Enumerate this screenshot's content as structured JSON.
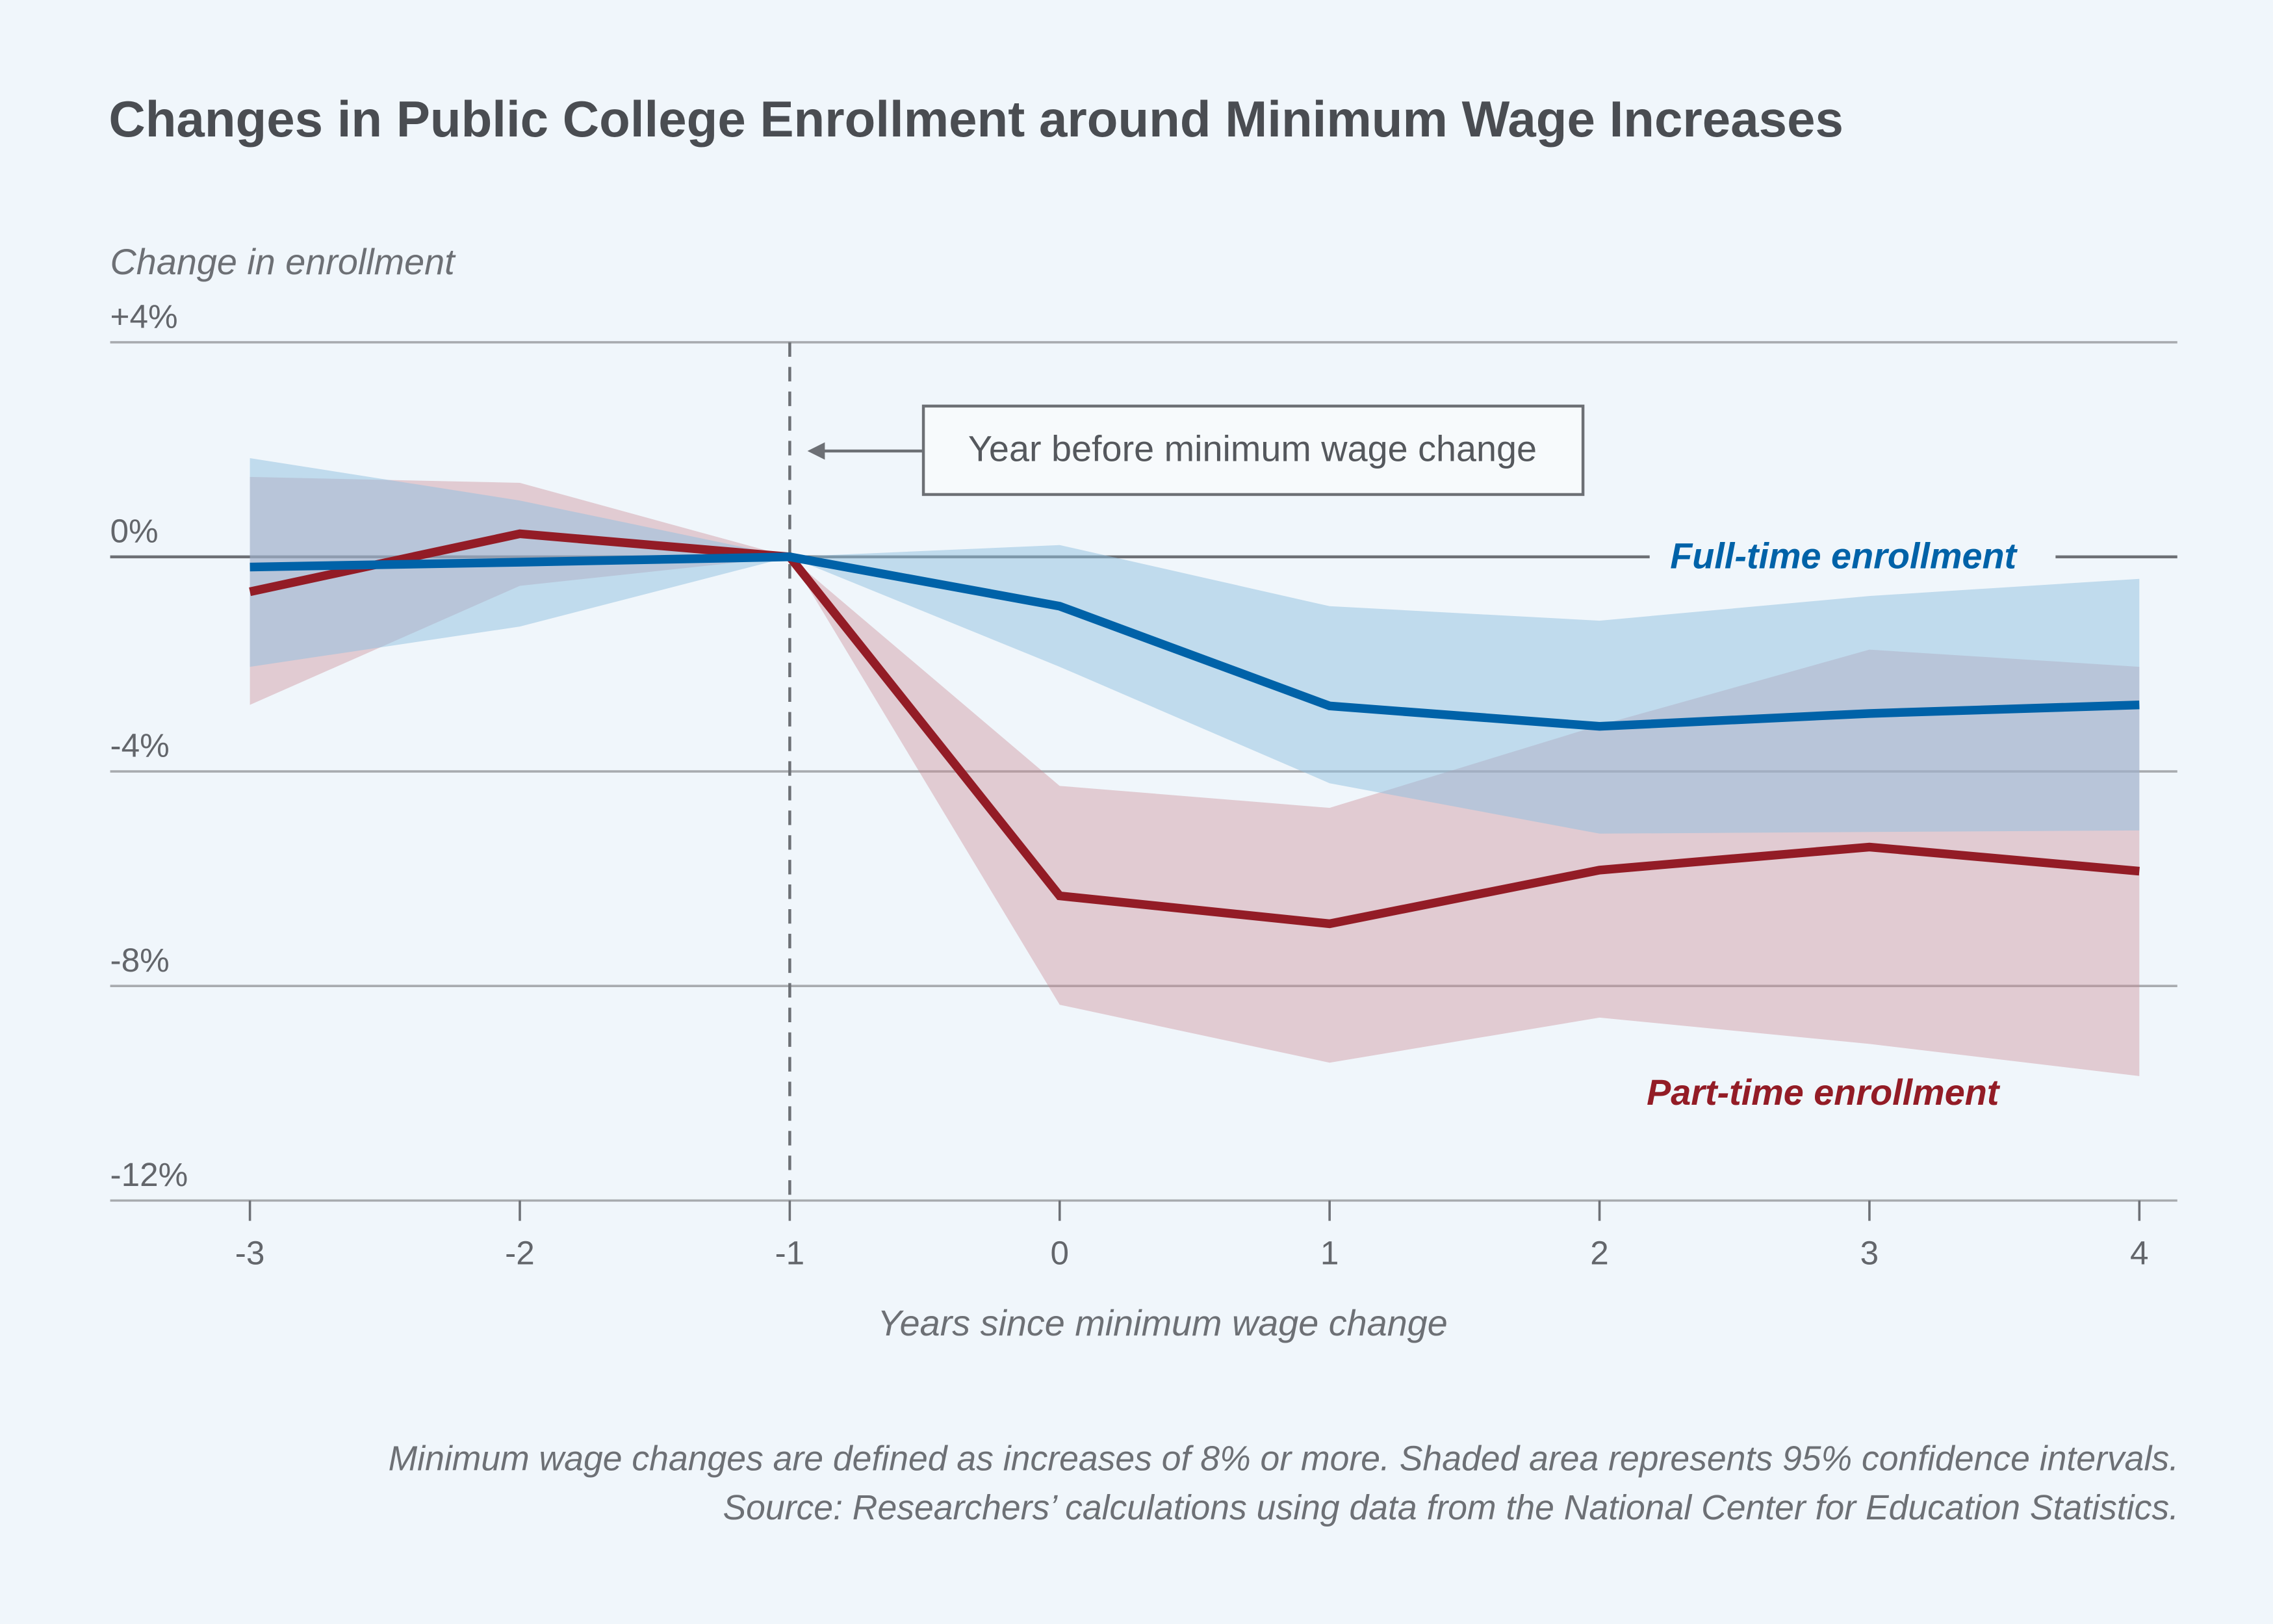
{
  "chart_data": {
    "type": "line",
    "title": "Changes in Public College Enrollment around Minimum Wage Increases",
    "ylabel": "Change in enrollment",
    "xlabel": "Years since minimum wage change",
    "x": [
      -3,
      -2,
      -1,
      0,
      1,
      2,
      3,
      4
    ],
    "x_tick_labels": [
      "-3",
      "-2",
      "-1",
      "0",
      "1",
      "2",
      "3",
      "4"
    ],
    "y_ticks": [
      4,
      0,
      -4,
      -8,
      -12
    ],
    "y_tick_labels": [
      "+4%",
      "0%",
      "-4%",
      "-8%",
      "-12%"
    ],
    "ylim": [
      -12,
      4
    ],
    "xlim": [
      -3.5,
      4.1
    ],
    "grid": "horizontal",
    "series": [
      {
        "name": "Part-time enrollment",
        "color": "#931c26",
        "band_color": "#c98790",
        "values": [
          -0.65,
          0.43,
          0,
          -6.32,
          -6.84,
          -5.84,
          -5.41,
          -5.86
        ],
        "ci_upper": [
          1.49,
          1.38,
          0,
          -4.27,
          -4.68,
          -3.14,
          -1.73,
          -2.05
        ],
        "ci_lower": [
          -2.76,
          -0.54,
          0,
          -8.35,
          -9.43,
          -8.59,
          -9.08,
          -9.68
        ]
      },
      {
        "name": "Full-time enrollment",
        "color": "#0062a8",
        "band_color": "#8fbfe0",
        "values": [
          -0.19,
          -0.1,
          0,
          -0.92,
          -2.78,
          -3.16,
          -2.92,
          -2.76
        ],
        "ci_upper": [
          1.84,
          1.05,
          0,
          0.22,
          -0.92,
          -1.19,
          -0.73,
          -0.41
        ],
        "ci_lower": [
          -2.05,
          -1.3,
          0,
          -2.05,
          -4.22,
          -5.16,
          -5.13,
          -5.1
        ]
      }
    ],
    "annotation": {
      "text": "Year before minimum wage change",
      "x": -1
    },
    "notes": [
      "Minimum wage changes are defined as increases of 8% or more. Shaded area represents 95% confidence intervals.",
      "Source: Researchers’ calculations using data from the National Center for Education Statistics."
    ]
  }
}
